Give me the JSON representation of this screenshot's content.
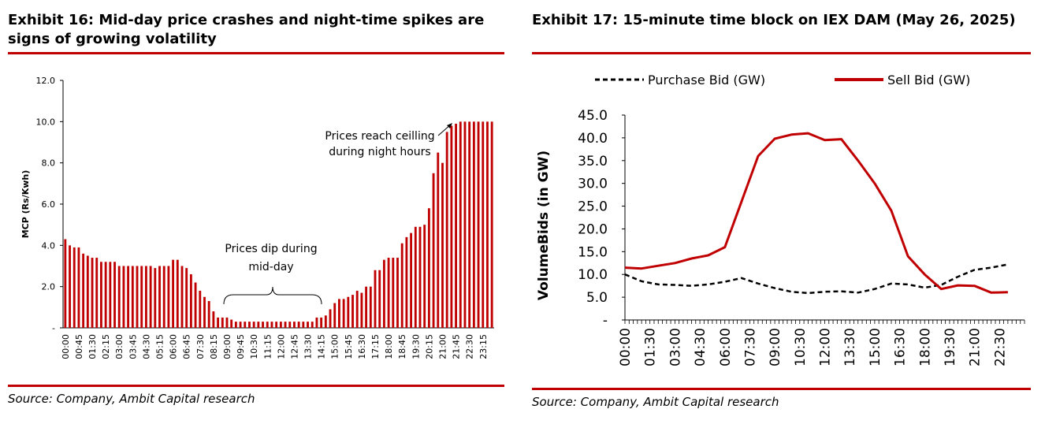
{
  "left": {
    "title_line1": "Exhibit 16: Mid-day price crashes and night-time spikes are",
    "title_line2": "signs of growing volatility",
    "source": "Source: Company, Ambit Capital research",
    "chart_data": {
      "type": "bar",
      "ylabel": "MCP (Rs/Kwh)",
      "xlabel": "",
      "ylim": [
        0,
        12
      ],
      "yticks": [
        "-",
        "2.0",
        "4.0",
        "6.0",
        "8.0",
        "10.0",
        "12.0"
      ],
      "grid": false,
      "color": "#c00000",
      "categories": [
        "00:00",
        "00:15",
        "00:30",
        "00:45",
        "01:00",
        "01:15",
        "01:30",
        "01:45",
        "02:00",
        "02:15",
        "02:30",
        "02:45",
        "03:00",
        "03:15",
        "03:30",
        "03:45",
        "04:00",
        "04:15",
        "04:30",
        "04:45",
        "05:00",
        "05:15",
        "05:30",
        "05:45",
        "06:00",
        "06:15",
        "06:30",
        "06:45",
        "07:00",
        "07:15",
        "07:30",
        "07:45",
        "08:00",
        "08:15",
        "08:30",
        "08:45",
        "09:00",
        "09:15",
        "09:30",
        "09:45",
        "10:00",
        "10:15",
        "10:30",
        "10:45",
        "11:00",
        "11:15",
        "11:30",
        "11:45",
        "12:00",
        "12:15",
        "12:30",
        "12:45",
        "13:00",
        "13:15",
        "13:30",
        "13:45",
        "14:00",
        "14:15",
        "14:30",
        "14:45",
        "15:00",
        "15:15",
        "15:30",
        "15:45",
        "16:00",
        "16:15",
        "16:30",
        "16:45",
        "17:00",
        "17:15",
        "17:30",
        "17:45",
        "18:00",
        "18:15",
        "18:30",
        "18:45",
        "19:00",
        "19:15",
        "19:30",
        "19:45",
        "20:00",
        "20:15",
        "20:30",
        "20:45",
        "21:00",
        "21:15",
        "21:30",
        "21:45",
        "22:00",
        "22:15",
        "22:30",
        "22:45",
        "23:00",
        "23:15",
        "23:30",
        "23:45"
      ],
      "tick_labels": [
        "00:00",
        "00:45",
        "01:30",
        "02:15",
        "03:00",
        "03:45",
        "04:30",
        "05:15",
        "06:00",
        "06:45",
        "07:30",
        "08:15",
        "09:00",
        "09:45",
        "10:30",
        "11:15",
        "12:00",
        "12:45",
        "13:30",
        "14:15",
        "15:00",
        "15:45",
        "16:30",
        "17:15",
        "18:00",
        "18:45",
        "19:30",
        "20:15",
        "21:00",
        "21:45",
        "22:30",
        "23:15"
      ],
      "values": [
        4.3,
        4.0,
        3.9,
        3.9,
        3.6,
        3.5,
        3.4,
        3.4,
        3.2,
        3.2,
        3.2,
        3.2,
        3.0,
        3.0,
        3.0,
        3.0,
        3.0,
        3.0,
        3.0,
        3.0,
        2.9,
        3.0,
        3.0,
        3.0,
        3.3,
        3.3,
        3.0,
        2.9,
        2.6,
        2.2,
        1.8,
        1.5,
        1.3,
        0.8,
        0.5,
        0.5,
        0.5,
        0.4,
        0.3,
        0.3,
        0.3,
        0.3,
        0.3,
        0.3,
        0.3,
        0.3,
        0.3,
        0.3,
        0.3,
        0.3,
        0.3,
        0.3,
        0.3,
        0.3,
        0.3,
        0.3,
        0.5,
        0.5,
        0.6,
        0.9,
        1.2,
        1.4,
        1.4,
        1.5,
        1.6,
        1.8,
        1.7,
        2.0,
        2.0,
        2.8,
        2.8,
        3.3,
        3.4,
        3.4,
        3.4,
        4.1,
        4.4,
        4.6,
        4.9,
        4.9,
        5.0,
        5.8,
        7.5,
        8.5,
        8.0,
        9.5,
        9.8,
        9.9,
        10.0,
        10.0,
        10.0,
        10.0,
        10.0,
        10.0,
        10.0,
        10.0
      ],
      "annotations": [
        {
          "text_line1": "Prices reach ceilling",
          "text_line2": "during night hours"
        },
        {
          "text_line1": "Prices dip during",
          "text_line2": "mid-day"
        }
      ]
    }
  },
  "right": {
    "title": "Exhibit 17: 15-minute time block on IEX DAM (May 26, 2025)",
    "source": "Source: Company, Ambit Capital research",
    "chart_data": {
      "type": "line",
      "ylabel": "VolumeBids (in GW)",
      "xlabel": "",
      "ylim": [
        0,
        45
      ],
      "yticks": [
        "-",
        "5.0",
        "10.0",
        "15.0",
        "20.0",
        "25.0",
        "30.0",
        "35.0",
        "40.0",
        "45.0"
      ],
      "tick_labels": [
        "00:00",
        "01:30",
        "03:00",
        "04:30",
        "06:00",
        "07:30",
        "09:00",
        "10:30",
        "12:00",
        "13:30",
        "15:00",
        "16:30",
        "18:00",
        "19:30",
        "21:00",
        "22:30"
      ],
      "legend_position": "top",
      "grid": false,
      "x": [
        0,
        1,
        2,
        3,
        4,
        5,
        6,
        7,
        8,
        9,
        10,
        11,
        12,
        13,
        14,
        15,
        16,
        17,
        18,
        19,
        20,
        21,
        22,
        23
      ],
      "x_unit": "hour",
      "series": [
        {
          "name": "Purchase Bid (GW)",
          "style": "dashed",
          "color": "#000000",
          "values": [
            10.0,
            8.5,
            7.8,
            7.7,
            7.5,
            7.8,
            8.4,
            9.2,
            8.0,
            7.0,
            6.2,
            5.9,
            6.2,
            6.3,
            6.0,
            6.8,
            8.0,
            7.8,
            7.1,
            7.7,
            9.5,
            11.0,
            11.5,
            12.2
          ]
        },
        {
          "name": "Sell Bid (GW)",
          "style": "solid",
          "color": "#c00000",
          "values": [
            11.5,
            11.3,
            11.9,
            12.5,
            13.5,
            14.2,
            16.0,
            26.0,
            36.0,
            39.8,
            40.7,
            41.0,
            39.5,
            39.7,
            35.0,
            30.0,
            24.0,
            14.0,
            10.0,
            6.8,
            7.6,
            7.5,
            6.0,
            6.1
          ]
        }
      ]
    }
  }
}
